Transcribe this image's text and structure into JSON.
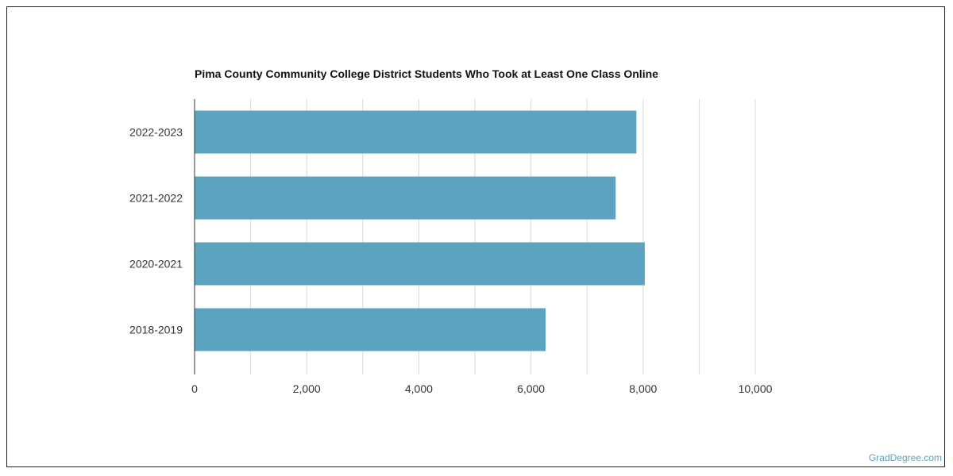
{
  "chart_data": {
    "type": "bar",
    "orientation": "horizontal",
    "title": "Pima County Community College District Students Who Took at Least One Class Online",
    "categories": [
      "2022-2023",
      "2021-2022",
      "2020-2021",
      "2018-2019"
    ],
    "values": [
      7880,
      7510,
      8030,
      6260
    ],
    "xlabel": "",
    "ylabel": "",
    "xlim": [
      0,
      10000
    ],
    "xticks": [
      0,
      2000,
      4000,
      6000,
      8000,
      10000
    ],
    "xtick_labels": [
      "0",
      "2,000",
      "4,000",
      "6,000",
      "8,000",
      "10,000"
    ],
    "grid": true,
    "bar_color": "#5ba3bf",
    "grid_color": "#d9d9d9"
  },
  "credit": "GradDegree.com"
}
